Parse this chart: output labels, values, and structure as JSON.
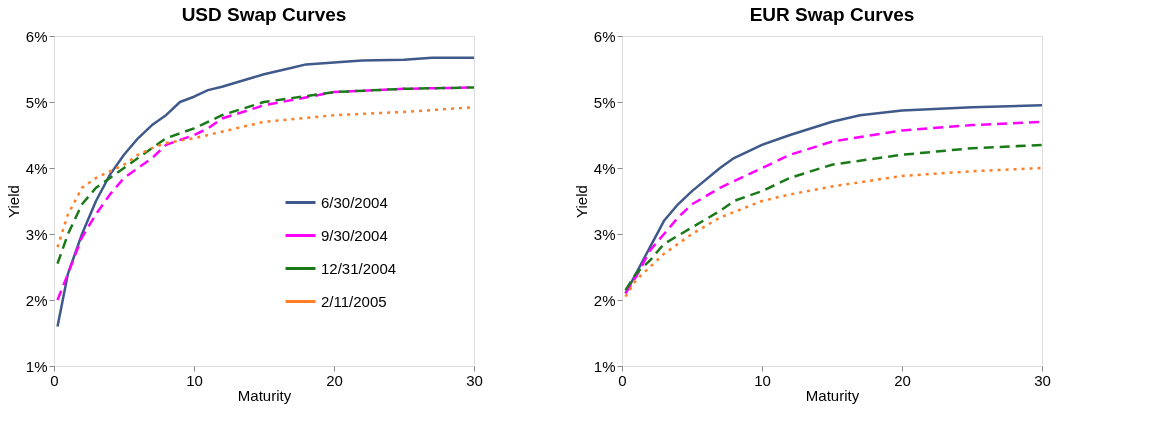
{
  "chart_data": [
    {
      "type": "line",
      "title": "USD Swap Curves",
      "xlabel": "Maturity",
      "ylabel": "Yield",
      "xlim": [
        0,
        30
      ],
      "xticks": [
        0,
        10,
        20,
        30
      ],
      "ylim": [
        1,
        6
      ],
      "yticks": [
        {
          "value": 1,
          "label": "1%"
        },
        {
          "value": 2,
          "label": "2%"
        },
        {
          "value": 3,
          "label": "3%"
        },
        {
          "value": 4,
          "label": "4%"
        },
        {
          "value": 5,
          "label": "5%"
        },
        {
          "value": 6,
          "label": "6%"
        }
      ],
      "grid": false,
      "legend": "right",
      "marker": "none",
      "series": [
        {
          "name": "6/30/2004",
          "color": "#3f5a8a",
          "line_style": "solid",
          "x": [
            0.25,
            1,
            2,
            3,
            4,
            5,
            6,
            7,
            8,
            9,
            10,
            11,
            12,
            15,
            17,
            18,
            20,
            22,
            25,
            27,
            30
          ],
          "values": [
            1.6,
            2.4,
            3.0,
            3.5,
            3.9,
            4.2,
            4.45,
            4.65,
            4.8,
            5.0,
            5.08,
            5.18,
            5.23,
            5.42,
            5.52,
            5.57,
            5.6,
            5.63,
            5.64,
            5.67,
            5.67
          ]
        },
        {
          "name": "9/30/2004",
          "color": "#ff00ff",
          "line_style": "dashed",
          "x": [
            0.25,
            1,
            2,
            3,
            4,
            5,
            6,
            7,
            8,
            10,
            11,
            12,
            15,
            20,
            25,
            30
          ],
          "values": [
            2.0,
            2.4,
            2.95,
            3.3,
            3.6,
            3.85,
            4.0,
            4.15,
            4.35,
            4.5,
            4.6,
            4.75,
            4.95,
            5.15,
            5.2,
            5.22
          ]
        },
        {
          "name": "12/31/2004",
          "color": "#1a7a1a",
          "line_style": "dashed",
          "x": [
            0.25,
            1,
            2,
            3,
            4,
            5,
            6,
            7,
            8,
            10,
            12,
            15,
            20,
            25,
            30
          ],
          "values": [
            2.55,
            3.0,
            3.45,
            3.7,
            3.85,
            4.0,
            4.15,
            4.3,
            4.45,
            4.6,
            4.8,
            5.0,
            5.15,
            5.2,
            5.22
          ]
        },
        {
          "name": "2/11/2005",
          "color": "#ff7f27",
          "line_style": "dotted",
          "x": [
            0.25,
            1,
            2,
            3,
            4,
            5,
            6,
            7,
            8,
            10,
            12,
            15,
            20,
            25,
            30
          ],
          "values": [
            2.8,
            3.3,
            3.7,
            3.85,
            3.95,
            4.05,
            4.2,
            4.3,
            4.38,
            4.45,
            4.55,
            4.7,
            4.8,
            4.85,
            4.92
          ]
        }
      ]
    },
    {
      "type": "line",
      "title": "EUR Swap Curves",
      "xlabel": "Maturity",
      "ylabel": "Yield",
      "xlim": [
        0,
        30
      ],
      "xticks": [
        0,
        10,
        20,
        30
      ],
      "ylim": [
        1,
        6
      ],
      "yticks": [
        {
          "value": 1,
          "label": "1%"
        },
        {
          "value": 2,
          "label": "2%"
        },
        {
          "value": 3,
          "label": "3%"
        },
        {
          "value": 4,
          "label": "4%"
        },
        {
          "value": 5,
          "label": "5%"
        },
        {
          "value": 6,
          "label": "6%"
        }
      ],
      "grid": false,
      "legend": "right",
      "marker": "none",
      "series": [
        {
          "name": "6/30/2004",
          "color": "#3f5a8a",
          "line_style": "solid",
          "x": [
            0.25,
            1,
            2,
            3,
            4,
            5,
            7,
            8,
            10,
            12,
            15,
            17,
            20,
            25,
            30
          ],
          "values": [
            2.1,
            2.4,
            2.8,
            3.2,
            3.45,
            3.65,
            4.0,
            4.15,
            4.35,
            4.5,
            4.7,
            4.8,
            4.87,
            4.92,
            4.95
          ]
        },
        {
          "name": "9/30/2004",
          "color": "#ff00ff",
          "line_style": "dashed",
          "x": [
            0.25,
            1,
            2,
            3,
            4,
            5,
            7,
            10,
            12,
            15,
            20,
            25,
            30
          ],
          "values": [
            2.1,
            2.35,
            2.75,
            3.0,
            3.25,
            3.45,
            3.7,
            4.0,
            4.2,
            4.4,
            4.57,
            4.65,
            4.7
          ]
        },
        {
          "name": "12/31/2004",
          "color": "#1a7a1a",
          "line_style": "dashed",
          "x": [
            0.25,
            1,
            2,
            3,
            5,
            7,
            8,
            10,
            12,
            15,
            20,
            25,
            30
          ],
          "values": [
            2.15,
            2.4,
            2.6,
            2.85,
            3.1,
            3.35,
            3.5,
            3.65,
            3.85,
            4.05,
            4.2,
            4.3,
            4.35
          ]
        },
        {
          "name": "2/11/2005",
          "color": "#ff7f27",
          "line_style": "dotted",
          "x": [
            0.25,
            1,
            2,
            3,
            5,
            7,
            10,
            12,
            15,
            20,
            25,
            30
          ],
          "values": [
            2.05,
            2.3,
            2.5,
            2.7,
            3.0,
            3.25,
            3.5,
            3.6,
            3.72,
            3.88,
            3.95,
            4.0
          ]
        }
      ]
    }
  ]
}
